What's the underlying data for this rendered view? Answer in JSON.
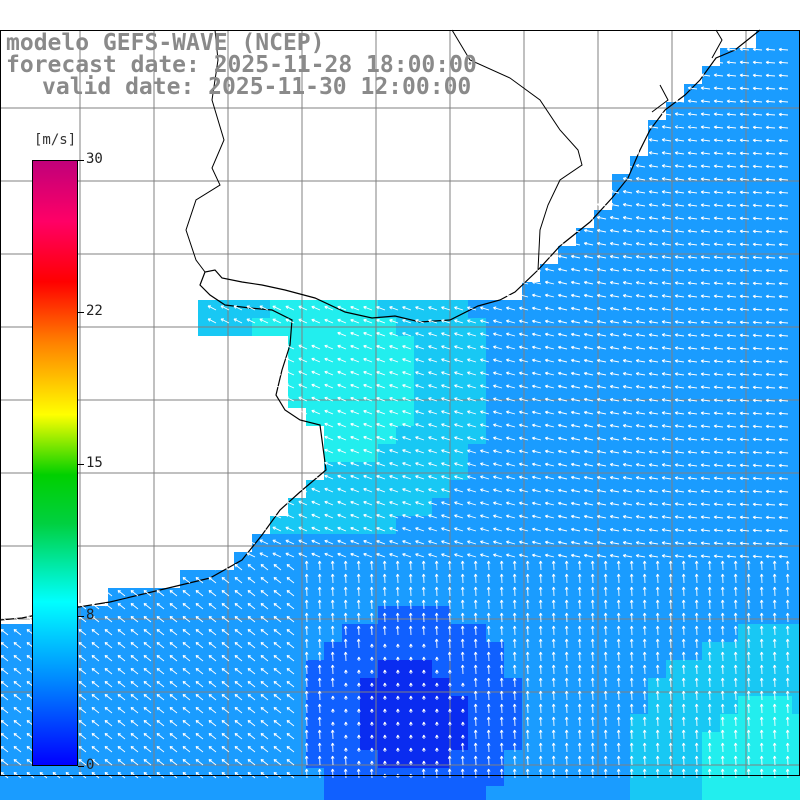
{
  "header": {
    "title": "modelo GEFS-WAVE (NCEP)",
    "forecast": "forecast date: 2025-11-28 18:00:00",
    "valid": "valid date: 2025-11-30 12:00:00"
  },
  "colorbar": {
    "unit": "[m/s]",
    "ticks": [
      "30",
      "22",
      "15",
      "8",
      "0"
    ],
    "tick_values": [
      30,
      22,
      15,
      8,
      0
    ],
    "range": [
      0,
      30
    ],
    "colors": [
      "#0000ff",
      "#0088ff",
      "#00ffff",
      "#00d000",
      "#ffff00",
      "#ff8000",
      "#ff0000",
      "#c0007a"
    ]
  },
  "map": {
    "variable": "wind speed with wind direction arrows",
    "land_color": "#ffffff",
    "grid_color": "#808080",
    "coast_color": "#000000",
    "arrow_color": "#ffffff",
    "field_colors": {
      "low": "#0a2cf0",
      "mid": "#1a8cff",
      "high": "#22eeee"
    }
  }
}
